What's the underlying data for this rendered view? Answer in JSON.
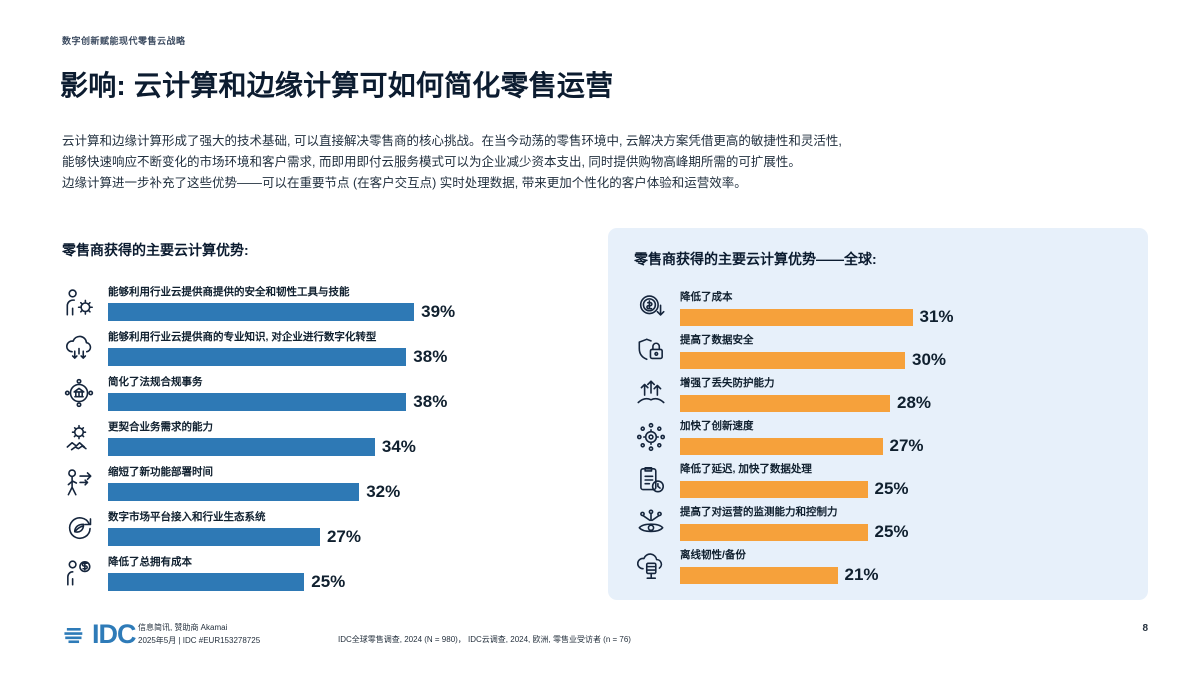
{
  "page": {
    "running_header": "数字创新赋能现代零售云战略",
    "title": "影响: 云计算和边缘计算可如何简化零售运营",
    "intro_lines": [
      "云计算和边缘计算形成了强大的技术基础, 可以直接解决零售商的核心挑战。在当今动荡的零售环境中, 云解决方案凭借更高的敏捷性和灵活性,",
      "能够快速响应不断变化的市场环境和客户需求, 而即用即付云服务模式可以为企业减少资本支出, 同时提供购物高峰期所需的可扩展性。",
      "边缘计算进一步补充了这些优势——可以在重要节点 (在客户交互点) 实时处理数据, 带来更加个性化的客户体验和运营效率。"
    ],
    "page_number": "8"
  },
  "footer": {
    "logo_text": "IDC",
    "line1": "信息简讯, 赞助商 Akamai",
    "line2": "2025年5月 | IDC #EUR153278725",
    "source": "IDC全球零售调查, 2024 (N = 980)，  IDC云调查, 2024, 欧洲, 零售业受访者 (n = 76)"
  },
  "colors": {
    "left_bar": "#2e79b5",
    "right_bar": "#f6a13b",
    "panel_bg": "#e7f0fa",
    "logo_blue": "#2e7bb8"
  },
  "chart_data": [
    {
      "type": "bar",
      "orientation": "horizontal",
      "title": "零售商获得的主要云计算优势:",
      "bar_color": "#2e79b5",
      "value_suffix": "%",
      "xlim": [
        0,
        40
      ],
      "categories": [
        "能够利用行业云提供商提供的安全和韧性工具与技能",
        "能够利用行业云提供商的专业知识, 对企业进行数字化转型",
        "简化了法规合规事务",
        "更契合业务需求的能力",
        "缩短了新功能部署时间",
        "数字市场平台接入和行业生态系统",
        "降低了总拥有成本"
      ],
      "values": [
        39,
        38,
        38,
        34,
        32,
        27,
        25
      ],
      "icons": [
        "person-gear-icon",
        "cloud-expertise-icon",
        "compliance-network-icon",
        "gear-handshake-icon",
        "deployment-speed-icon",
        "ecosystem-icon",
        "cost-person-icon"
      ]
    },
    {
      "type": "bar",
      "orientation": "horizontal",
      "title": "零售商获得的主要云计算优势——全球:",
      "bar_color": "#f6a13b",
      "value_suffix": "%",
      "xlim": [
        0,
        35
      ],
      "categories": [
        "降低了成本",
        "提高了数据安全",
        "增强了丢失防护能力",
        "加快了创新速度",
        "降低了延迟, 加快了数据处理",
        "提高了对运营的监测能力和控制力",
        "离线韧性/备份"
      ],
      "values": [
        31,
        30,
        28,
        27,
        25,
        25,
        21
      ],
      "icons": [
        "dollar-down-icon",
        "shield-lock-icon",
        "loss-prevention-icon",
        "innovation-gear-icon",
        "clipboard-clock-icon",
        "monitoring-eye-icon",
        "cloud-backup-icon"
      ]
    }
  ]
}
